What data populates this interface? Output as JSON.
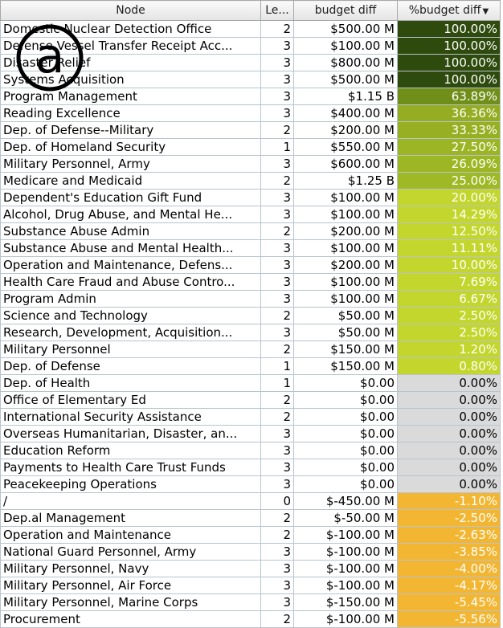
{
  "columns": {
    "node": "Node",
    "level": "Le...",
    "budget_diff": "budget diff",
    "pct_budget_diff": "%budget diff"
  },
  "badge_letter": "a",
  "rows": [
    {
      "node": "Domestic Nuclear Detection Office",
      "level": "2",
      "diff": "$500.00 M",
      "pct": "100.00%",
      "color": "#2e4a0c",
      "light": true
    },
    {
      "node": "Defense Vessel Transfer Receipt Acc...",
      "level": "3",
      "diff": "$100.00 M",
      "pct": "100.00%",
      "color": "#2e4a0c",
      "light": true
    },
    {
      "node": "Disaster Relief",
      "level": "3",
      "diff": "$800.00 M",
      "pct": "100.00%",
      "color": "#2e4a0c",
      "light": true
    },
    {
      "node": "Systems Acquisition",
      "level": "3",
      "diff": "$500.00 M",
      "pct": "100.00%",
      "color": "#2e4a0c",
      "light": true
    },
    {
      "node": "Program Management",
      "level": "3",
      "diff": "$1.15 B",
      "pct": "63.89%",
      "color": "#6f8f1a",
      "light": true
    },
    {
      "node": "Reading Excellence",
      "level": "3",
      "diff": "$400.00 M",
      "pct": "36.36%",
      "color": "#94ad22",
      "light": true
    },
    {
      "node": "Dep. of Defense--Military",
      "level": "2",
      "diff": "$200.00 M",
      "pct": "33.33%",
      "color": "#97b023",
      "light": true
    },
    {
      "node": "Dep. of Homeland Security",
      "level": "1",
      "diff": "$550.00 M",
      "pct": "27.50%",
      "color": "#9cb524",
      "light": true
    },
    {
      "node": "Military Personnel, Army",
      "level": "3",
      "diff": "$600.00 M",
      "pct": "26.09%",
      "color": "#9db624",
      "light": true
    },
    {
      "node": "Medicare and Medicaid",
      "level": "2",
      "diff": "$1.25 B",
      "pct": "25.00%",
      "color": "#9fb825",
      "light": true
    },
    {
      "node": "Dependent's Education Gift Fund",
      "level": "3",
      "diff": "$100.00 M",
      "pct": "20.00%",
      "color": "#c3d62d",
      "light": true
    },
    {
      "node": "Alcohol, Drug Abuse, and Mental He...",
      "level": "3",
      "diff": "$100.00 M",
      "pct": "14.29%",
      "color": "#c3d62d",
      "light": true
    },
    {
      "node": "Substance Abuse Admin",
      "level": "2",
      "diff": "$200.00 M",
      "pct": "12.50%",
      "color": "#c3d62d",
      "light": true
    },
    {
      "node": "Substance Abuse and Mental Health...",
      "level": "3",
      "diff": "$100.00 M",
      "pct": "11.11%",
      "color": "#c3d62d",
      "light": true
    },
    {
      "node": "Operation and Maintenance, Defens...",
      "level": "3",
      "diff": "$200.00 M",
      "pct": "10.00%",
      "color": "#c3d62d",
      "light": true
    },
    {
      "node": "Health Care Fraud and Abuse Contro...",
      "level": "3",
      "diff": "$100.00 M",
      "pct": "7.69%",
      "color": "#c3d62d",
      "light": true
    },
    {
      "node": "Program Admin",
      "level": "3",
      "diff": "$100.00 M",
      "pct": "6.67%",
      "color": "#c3d62d",
      "light": true
    },
    {
      "node": "Science and Technology",
      "level": "2",
      "diff": "$50.00 M",
      "pct": "2.50%",
      "color": "#c3d62d",
      "light": true
    },
    {
      "node": "Research, Development, Acquisition...",
      "level": "3",
      "diff": "$50.00 M",
      "pct": "2.50%",
      "color": "#c3d62d",
      "light": true
    },
    {
      "node": "Military Personnel",
      "level": "2",
      "diff": "$150.00 M",
      "pct": "1.20%",
      "color": "#c3d62d",
      "light": true
    },
    {
      "node": "Dep. of Defense",
      "level": "1",
      "diff": "$150.00 M",
      "pct": "0.80%",
      "color": "#c3d62d",
      "light": true
    },
    {
      "node": "Dep. of Health",
      "level": "1",
      "diff": "$0.00",
      "pct": "0.00%",
      "color": "#dadada",
      "light": false
    },
    {
      "node": "Office of Elementary Ed",
      "level": "2",
      "diff": "$0.00",
      "pct": "0.00%",
      "color": "#dadada",
      "light": false
    },
    {
      "node": "International Security Assistance",
      "level": "2",
      "diff": "$0.00",
      "pct": "0.00%",
      "color": "#dadada",
      "light": false
    },
    {
      "node": "Overseas Humanitarian, Disaster, an...",
      "level": "3",
      "diff": "$0.00",
      "pct": "0.00%",
      "color": "#dadada",
      "light": false
    },
    {
      "node": "Education Reform",
      "level": "3",
      "diff": "$0.00",
      "pct": "0.00%",
      "color": "#dadada",
      "light": false
    },
    {
      "node": "Payments to Health Care Trust Funds",
      "level": "3",
      "diff": "$0.00",
      "pct": "0.00%",
      "color": "#dadada",
      "light": false
    },
    {
      "node": "Peacekeeping Operations",
      "level": "3",
      "diff": "$0.00",
      "pct": "0.00%",
      "color": "#dadada",
      "light": false
    },
    {
      "node": "/",
      "level": "0",
      "diff": "$-450.00 M",
      "pct": "-1.10%",
      "color": "#f2b632",
      "light": true
    },
    {
      "node": "Dep.al Management",
      "level": "2",
      "diff": "$-50.00 M",
      "pct": "-2.50%",
      "color": "#f2b632",
      "light": true
    },
    {
      "node": "Operation and Maintenance",
      "level": "2",
      "diff": "$-100.00 M",
      "pct": "-2.63%",
      "color": "#f2b632",
      "light": true
    },
    {
      "node": "National Guard Personnel, Army",
      "level": "3",
      "diff": "$-100.00 M",
      "pct": "-3.85%",
      "color": "#f2b632",
      "light": true
    },
    {
      "node": "Military Personnel, Navy",
      "level": "3",
      "diff": "$-100.00 M",
      "pct": "-4.00%",
      "color": "#f2b632",
      "light": true
    },
    {
      "node": "Military Personnel, Air Force",
      "level": "3",
      "diff": "$-100.00 M",
      "pct": "-4.17%",
      "color": "#f2b632",
      "light": true
    },
    {
      "node": "Military Personnel, Marine Corps",
      "level": "3",
      "diff": "$-150.00 M",
      "pct": "-5.45%",
      "color": "#f2b632",
      "light": true
    },
    {
      "node": "Procurement",
      "level": "2",
      "diff": "$-100.00 M",
      "pct": "-5.56%",
      "color": "#f2b632",
      "light": true
    }
  ]
}
